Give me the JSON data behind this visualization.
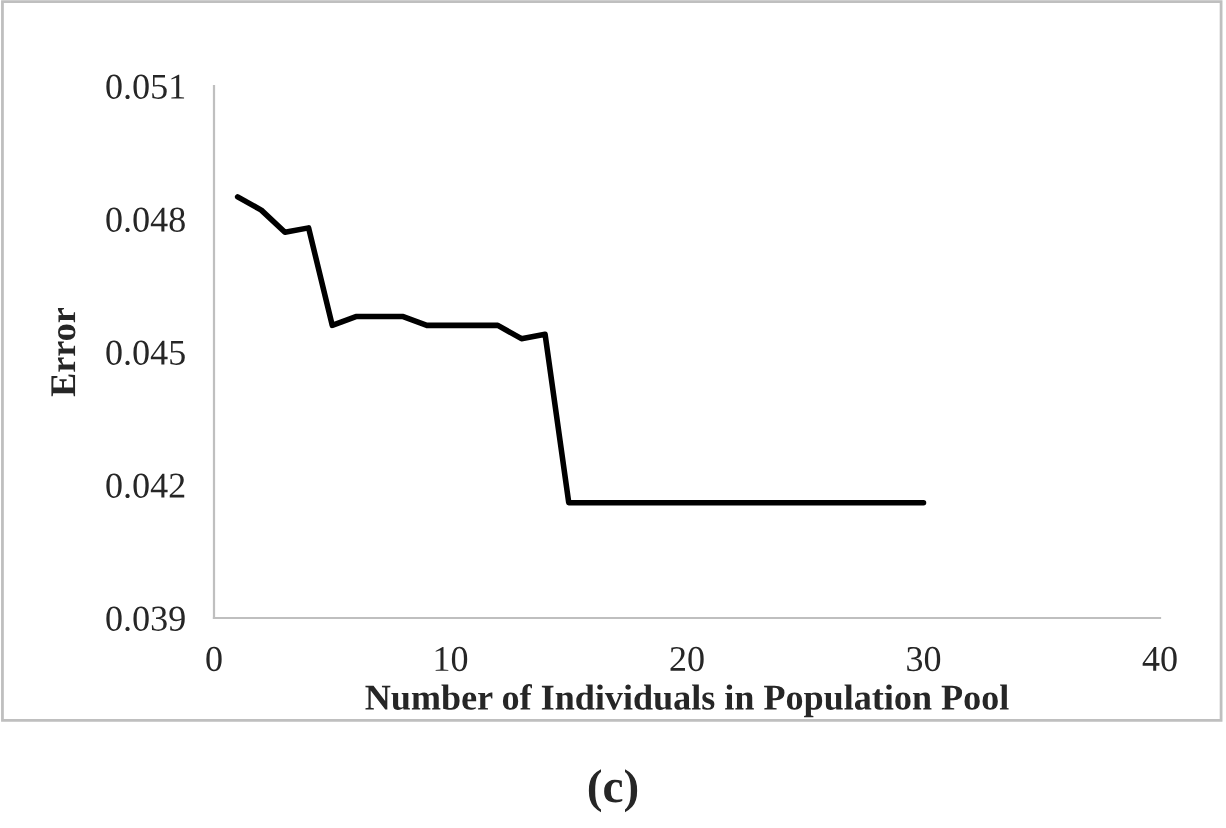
{
  "chart_data": {
    "type": "line",
    "xlabel": "Number of Individuals in Population Pool",
    "ylabel": "Error",
    "x": [
      1,
      2,
      3,
      4,
      5,
      6,
      7,
      8,
      9,
      10,
      11,
      12,
      13,
      14,
      15,
      16,
      17,
      18,
      19,
      20,
      21,
      22,
      23,
      24,
      25,
      26,
      27,
      28,
      29,
      30
    ],
    "series": [
      {
        "color": "#000000",
        "values": [
          0.0485,
          0.0482,
          0.0477,
          0.0478,
          0.0456,
          0.0458,
          0.0458,
          0.0458,
          0.0456,
          0.0456,
          0.0456,
          0.0456,
          0.0453,
          0.0454,
          0.0416,
          0.0416,
          0.0416,
          0.0416,
          0.0416,
          0.0416,
          0.0416,
          0.0416,
          0.0416,
          0.0416,
          0.0416,
          0.0416,
          0.0416,
          0.0416,
          0.0416,
          0.0416
        ]
      }
    ],
    "xlim": [
      0,
      40
    ],
    "xticks": [
      0,
      10,
      20,
      30,
      40
    ],
    "ylim": [
      0.039,
      0.051
    ],
    "yticks": [
      0.039,
      0.042,
      0.045,
      0.048,
      0.051
    ],
    "grid": false,
    "legend": false,
    "marker": "none",
    "line_style": "solid",
    "annotations": [
      "(c)"
    ]
  }
}
